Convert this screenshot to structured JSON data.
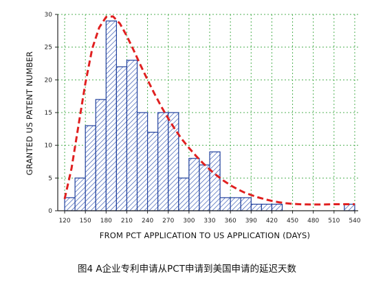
{
  "caption": "图4 A企业专利申请从PCT申请到美国申请的延迟天数",
  "chart_data": {
    "type": "bar",
    "subtype": "histogram-with-fitted-curve",
    "xlabel": "FROM PCT APPLICATION TO US APPLICATION (DAYS)",
    "ylabel": "GRANTED US PATENT NUMBER",
    "xlim": [
      110,
      545
    ],
    "ylim": [
      0,
      30
    ],
    "x_ticks": [
      120,
      150,
      180,
      210,
      240,
      270,
      300,
      330,
      360,
      390,
      420,
      450,
      480,
      510,
      540
    ],
    "y_ticks": [
      0,
      5,
      10,
      15,
      20,
      25,
      30
    ],
    "grid": true,
    "bin_width": 15,
    "bins": [
      {
        "start": 120,
        "value": 2
      },
      {
        "start": 135,
        "value": 5
      },
      {
        "start": 150,
        "value": 13
      },
      {
        "start": 165,
        "value": 17
      },
      {
        "start": 180,
        "value": 29
      },
      {
        "start": 195,
        "value": 22
      },
      {
        "start": 210,
        "value": 23
      },
      {
        "start": 225,
        "value": 15
      },
      {
        "start": 240,
        "value": 12
      },
      {
        "start": 255,
        "value": 15
      },
      {
        "start": 270,
        "value": 15
      },
      {
        "start": 285,
        "value": 5
      },
      {
        "start": 300,
        "value": 8
      },
      {
        "start": 315,
        "value": 7
      },
      {
        "start": 330,
        "value": 9
      },
      {
        "start": 345,
        "value": 2
      },
      {
        "start": 360,
        "value": 2
      },
      {
        "start": 375,
        "value": 2
      },
      {
        "start": 390,
        "value": 1
      },
      {
        "start": 405,
        "value": 1
      },
      {
        "start": 420,
        "value": 1
      },
      {
        "start": 525,
        "value": 1
      }
    ],
    "fit_curve": {
      "x": [
        120,
        130,
        140,
        150,
        160,
        170,
        180,
        190,
        200,
        210,
        220,
        230,
        240,
        250,
        260,
        270,
        280,
        290,
        300,
        310,
        320,
        330,
        340,
        350,
        360,
        370,
        380,
        390,
        400,
        410,
        420,
        430,
        440,
        450,
        460,
        470,
        480,
        490,
        500,
        510,
        520,
        530,
        540
      ],
      "y": [
        1.8,
        6.5,
        13,
        19.5,
        24.8,
        28,
        29.6,
        29.7,
        28.6,
        26.7,
        24.5,
        22.2,
        20,
        17.9,
        15.9,
        14.1,
        12.4,
        10.9,
        9.6,
        8.4,
        7.3,
        6.3,
        5.4,
        4.6,
        3.9,
        3.3,
        2.8,
        2.4,
        2.05,
        1.75,
        1.5,
        1.3,
        1.15,
        1.05,
        1.0,
        0.97,
        0.95,
        0.95,
        0.97,
        1.0,
        1.0,
        1.0,
        1.0
      ]
    },
    "colors": {
      "bar_edge": "#1f3f9c",
      "bar_hatch": "#2a4fb0",
      "grid": "#4caf50",
      "curve": "#e02020"
    }
  }
}
